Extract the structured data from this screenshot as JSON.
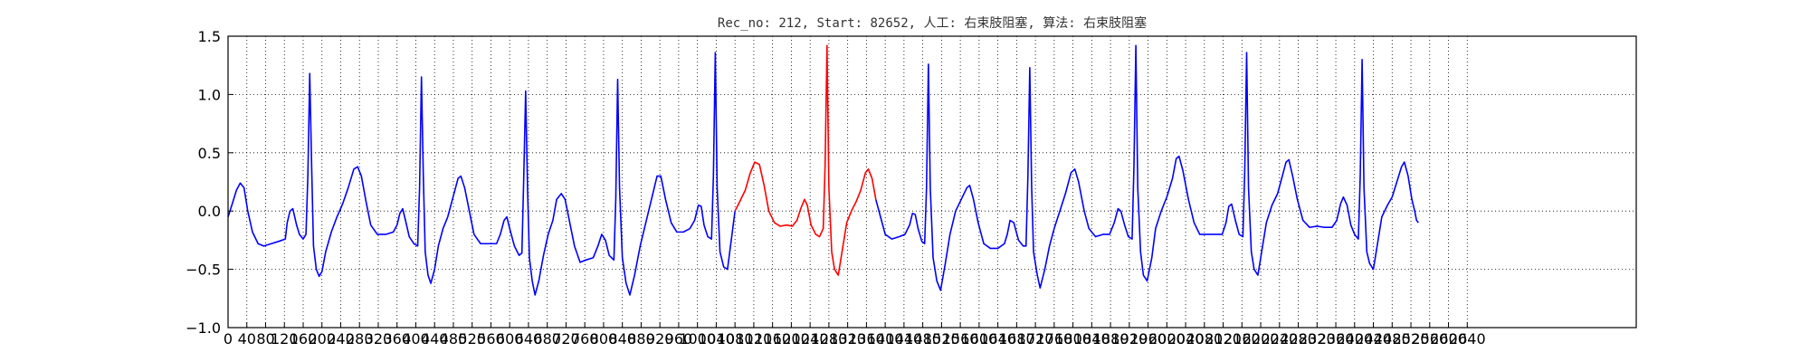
{
  "chart_data": {
    "type": "line",
    "title": "Rec_no: 212, Start: 82652, 人工: 右束肢阻塞, 算法: 右束肢阻塞",
    "xlabel": "",
    "ylabel": "",
    "xlim": [
      0,
      3000
    ],
    "ylim": [
      -1.0,
      1.5
    ],
    "yticks": [
      -1.0,
      -0.5,
      0.0,
      0.5,
      1.0,
      1.5
    ],
    "ytick_labels": [
      "−1.0",
      "−0.5",
      "0.0",
      "0.5",
      "1.0",
      "1.5"
    ],
    "xtick_step": 40,
    "xticks_max": 2640,
    "grid": true,
    "grid_style": "dotted",
    "line_color": "#0000ff",
    "highlight_color": "#ff0000",
    "highlight_range": [
      1080,
      1380
    ],
    "series_points": [
      [
        0,
        -0.05
      ],
      [
        8,
        0.05
      ],
      [
        18,
        0.18
      ],
      [
        26,
        0.24
      ],
      [
        34,
        0.2
      ],
      [
        42,
        0.0
      ],
      [
        52,
        -0.18
      ],
      [
        64,
        -0.28
      ],
      [
        76,
        -0.3
      ],
      [
        92,
        -0.28
      ],
      [
        108,
        -0.26
      ],
      [
        122,
        -0.24
      ],
      [
        126,
        -0.1
      ],
      [
        132,
        0.0
      ],
      [
        138,
        0.02
      ],
      [
        142,
        -0.05
      ],
      [
        146,
        -0.12
      ],
      [
        152,
        -0.2
      ],
      [
        160,
        -0.24
      ],
      [
        166,
        -0.2
      ],
      [
        170,
        0.3
      ],
      [
        174,
        1.18
      ],
      [
        178,
        0.4
      ],
      [
        182,
        -0.3
      ],
      [
        188,
        -0.5
      ],
      [
        194,
        -0.56
      ],
      [
        200,
        -0.52
      ],
      [
        208,
        -0.35
      ],
      [
        220,
        -0.18
      ],
      [
        232,
        -0.05
      ],
      [
        244,
        0.06
      ],
      [
        256,
        0.2
      ],
      [
        268,
        0.36
      ],
      [
        276,
        0.38
      ],
      [
        284,
        0.3
      ],
      [
        294,
        0.08
      ],
      [
        304,
        -0.12
      ],
      [
        318,
        -0.2
      ],
      [
        336,
        -0.2
      ],
      [
        352,
        -0.18
      ],
      [
        360,
        -0.12
      ],
      [
        366,
        -0.02
      ],
      [
        372,
        0.02
      ],
      [
        378,
        -0.08
      ],
      [
        386,
        -0.22
      ],
      [
        396,
        -0.28
      ],
      [
        404,
        -0.3
      ],
      [
        408,
        0.2
      ],
      [
        412,
        1.15
      ],
      [
        416,
        0.3
      ],
      [
        420,
        -0.35
      ],
      [
        426,
        -0.55
      ],
      [
        432,
        -0.62
      ],
      [
        440,
        -0.5
      ],
      [
        448,
        -0.3
      ],
      [
        458,
        -0.15
      ],
      [
        468,
        -0.05
      ],
      [
        478,
        0.1
      ],
      [
        490,
        0.28
      ],
      [
        496,
        0.3
      ],
      [
        504,
        0.2
      ],
      [
        514,
        0.0
      ],
      [
        524,
        -0.2
      ],
      [
        538,
        -0.28
      ],
      [
        556,
        -0.28
      ],
      [
        572,
        -0.28
      ],
      [
        580,
        -0.2
      ],
      [
        588,
        -0.08
      ],
      [
        594,
        -0.05
      ],
      [
        600,
        -0.15
      ],
      [
        610,
        -0.3
      ],
      [
        620,
        -0.38
      ],
      [
        626,
        -0.36
      ],
      [
        630,
        0.3
      ],
      [
        634,
        1.03
      ],
      [
        638,
        0.2
      ],
      [
        642,
        -0.4
      ],
      [
        648,
        -0.6
      ],
      [
        654,
        -0.72
      ],
      [
        662,
        -0.6
      ],
      [
        672,
        -0.38
      ],
      [
        682,
        -0.2
      ],
      [
        692,
        -0.08
      ],
      [
        700,
        0.1
      ],
      [
        710,
        0.15
      ],
      [
        718,
        0.1
      ],
      [
        728,
        -0.1
      ],
      [
        738,
        -0.3
      ],
      [
        750,
        -0.44
      ],
      [
        762,
        -0.42
      ],
      [
        778,
        -0.4
      ],
      [
        788,
        -0.3
      ],
      [
        796,
        -0.2
      ],
      [
        804,
        -0.25
      ],
      [
        812,
        -0.38
      ],
      [
        822,
        -0.42
      ],
      [
        826,
        0.1
      ],
      [
        830,
        1.13
      ],
      [
        834,
        0.2
      ],
      [
        840,
        -0.4
      ],
      [
        848,
        -0.62
      ],
      [
        856,
        -0.72
      ],
      [
        866,
        -0.55
      ],
      [
        878,
        -0.3
      ],
      [
        890,
        -0.1
      ],
      [
        902,
        0.1
      ],
      [
        914,
        0.3
      ],
      [
        922,
        0.3
      ],
      [
        932,
        0.1
      ],
      [
        944,
        -0.1
      ],
      [
        956,
        -0.18
      ],
      [
        970,
        -0.18
      ],
      [
        984,
        -0.15
      ],
      [
        994,
        -0.08
      ],
      [
        1002,
        0.05
      ],
      [
        1008,
        0.04
      ],
      [
        1014,
        -0.12
      ],
      [
        1022,
        -0.22
      ],
      [
        1030,
        -0.24
      ],
      [
        1034,
        0.3
      ],
      [
        1038,
        1.36
      ],
      [
        1042,
        0.2
      ],
      [
        1048,
        -0.35
      ],
      [
        1056,
        -0.48
      ],
      [
        1064,
        -0.5
      ],
      [
        1072,
        -0.25
      ],
      [
        1080,
        0.0
      ],
      [
        1090,
        0.08
      ],
      [
        1102,
        0.18
      ],
      [
        1112,
        0.32
      ],
      [
        1122,
        0.42
      ],
      [
        1132,
        0.4
      ],
      [
        1142,
        0.22
      ],
      [
        1152,
        0.0
      ],
      [
        1164,
        -0.1
      ],
      [
        1176,
        -0.13
      ],
      [
        1190,
        -0.12
      ],
      [
        1202,
        -0.13
      ],
      [
        1212,
        -0.08
      ],
      [
        1220,
        0.02
      ],
      [
        1228,
        0.1
      ],
      [
        1234,
        0.05
      ],
      [
        1242,
        -0.12
      ],
      [
        1252,
        -0.2
      ],
      [
        1260,
        -0.22
      ],
      [
        1268,
        -0.15
      ],
      [
        1272,
        0.4
      ],
      [
        1276,
        1.42
      ],
      [
        1280,
        0.2
      ],
      [
        1286,
        -0.35
      ],
      [
        1292,
        -0.5
      ],
      [
        1300,
        -0.55
      ],
      [
        1310,
        -0.3
      ],
      [
        1318,
        -0.1
      ],
      [
        1328,
        0.0
      ],
      [
        1338,
        0.08
      ],
      [
        1348,
        0.18
      ],
      [
        1358,
        0.33
      ],
      [
        1364,
        0.36
      ],
      [
        1372,
        0.28
      ],
      [
        1380,
        0.1
      ],
      [
        1390,
        -0.05
      ],
      [
        1400,
        -0.2
      ],
      [
        1414,
        -0.24
      ],
      [
        1430,
        -0.22
      ],
      [
        1442,
        -0.2
      ],
      [
        1452,
        -0.12
      ],
      [
        1458,
        -0.02
      ],
      [
        1464,
        -0.03
      ],
      [
        1470,
        -0.15
      ],
      [
        1478,
        -0.26
      ],
      [
        1484,
        -0.28
      ],
      [
        1488,
        0.2
      ],
      [
        1492,
        1.26
      ],
      [
        1496,
        0.2
      ],
      [
        1502,
        -0.4
      ],
      [
        1510,
        -0.6
      ],
      [
        1518,
        -0.68
      ],
      [
        1528,
        -0.45
      ],
      [
        1538,
        -0.2
      ],
      [
        1550,
        0.0
      ],
      [
        1562,
        0.1
      ],
      [
        1574,
        0.2
      ],
      [
        1580,
        0.22
      ],
      [
        1588,
        0.1
      ],
      [
        1598,
        -0.1
      ],
      [
        1610,
        -0.28
      ],
      [
        1624,
        -0.32
      ],
      [
        1640,
        -0.32
      ],
      [
        1654,
        -0.28
      ],
      [
        1660,
        -0.2
      ],
      [
        1666,
        -0.08
      ],
      [
        1674,
        -0.1
      ],
      [
        1684,
        -0.25
      ],
      [
        1694,
        -0.3
      ],
      [
        1700,
        -0.3
      ],
      [
        1704,
        0.3
      ],
      [
        1708,
        1.23
      ],
      [
        1712,
        0.2
      ],
      [
        1716,
        -0.35
      ],
      [
        1724,
        -0.55
      ],
      [
        1730,
        -0.66
      ],
      [
        1740,
        -0.5
      ],
      [
        1750,
        -0.3
      ],
      [
        1760,
        -0.15
      ],
      [
        1772,
        0.0
      ],
      [
        1784,
        0.15
      ],
      [
        1796,
        0.33
      ],
      [
        1804,
        0.36
      ],
      [
        1812,
        0.25
      ],
      [
        1824,
        0.0
      ],
      [
        1834,
        -0.15
      ],
      [
        1848,
        -0.22
      ],
      [
        1864,
        -0.2
      ],
      [
        1878,
        -0.2
      ],
      [
        1888,
        -0.1
      ],
      [
        1896,
        0.02
      ],
      [
        1902,
        0.0
      ],
      [
        1910,
        -0.12
      ],
      [
        1918,
        -0.22
      ],
      [
        1926,
        -0.24
      ],
      [
        1930,
        0.4
      ],
      [
        1934,
        1.42
      ],
      [
        1938,
        0.2
      ],
      [
        1944,
        -0.35
      ],
      [
        1950,
        -0.55
      ],
      [
        1958,
        -0.6
      ],
      [
        1968,
        -0.4
      ],
      [
        1976,
        -0.15
      ],
      [
        1988,
        0.0
      ],
      [
        2000,
        0.12
      ],
      [
        2012,
        0.28
      ],
      [
        2020,
        0.45
      ],
      [
        2026,
        0.47
      ],
      [
        2034,
        0.35
      ],
      [
        2046,
        0.1
      ],
      [
        2058,
        -0.1
      ],
      [
        2070,
        -0.2
      ],
      [
        2086,
        -0.2
      ],
      [
        2104,
        -0.2
      ],
      [
        2118,
        -0.2
      ],
      [
        2126,
        -0.1
      ],
      [
        2132,
        0.04
      ],
      [
        2138,
        0.06
      ],
      [
        2146,
        -0.08
      ],
      [
        2154,
        -0.2
      ],
      [
        2162,
        -0.22
      ],
      [
        2166,
        0.35
      ],
      [
        2170,
        1.36
      ],
      [
        2174,
        0.2
      ],
      [
        2180,
        -0.35
      ],
      [
        2186,
        -0.5
      ],
      [
        2194,
        -0.55
      ],
      [
        2202,
        -0.35
      ],
      [
        2212,
        -0.1
      ],
      [
        2224,
        0.05
      ],
      [
        2236,
        0.15
      ],
      [
        2246,
        0.3
      ],
      [
        2254,
        0.42
      ],
      [
        2260,
        0.44
      ],
      [
        2268,
        0.3
      ],
      [
        2278,
        0.1
      ],
      [
        2290,
        -0.08
      ],
      [
        2304,
        -0.14
      ],
      [
        2320,
        -0.13
      ],
      [
        2336,
        -0.14
      ],
      [
        2352,
        -0.14
      ],
      [
        2362,
        -0.08
      ],
      [
        2370,
        0.06
      ],
      [
        2376,
        0.12
      ],
      [
        2384,
        0.05
      ],
      [
        2392,
        -0.12
      ],
      [
        2400,
        -0.2
      ],
      [
        2408,
        -0.24
      ],
      [
        2412,
        0.3
      ],
      [
        2416,
        1.3
      ],
      [
        2420,
        0.2
      ],
      [
        2426,
        -0.35
      ],
      [
        2432,
        -0.45
      ],
      [
        2440,
        -0.5
      ],
      [
        2448,
        -0.3
      ],
      [
        2458,
        -0.05
      ],
      [
        2470,
        0.05
      ],
      [
        2480,
        0.12
      ],
      [
        2490,
        0.25
      ],
      [
        2500,
        0.38
      ],
      [
        2506,
        0.42
      ],
      [
        2514,
        0.3
      ],
      [
        2522,
        0.1
      ],
      [
        2528,
        0.0
      ],
      [
        2532,
        -0.08
      ],
      [
        2536,
        -0.1
      ]
    ]
  }
}
